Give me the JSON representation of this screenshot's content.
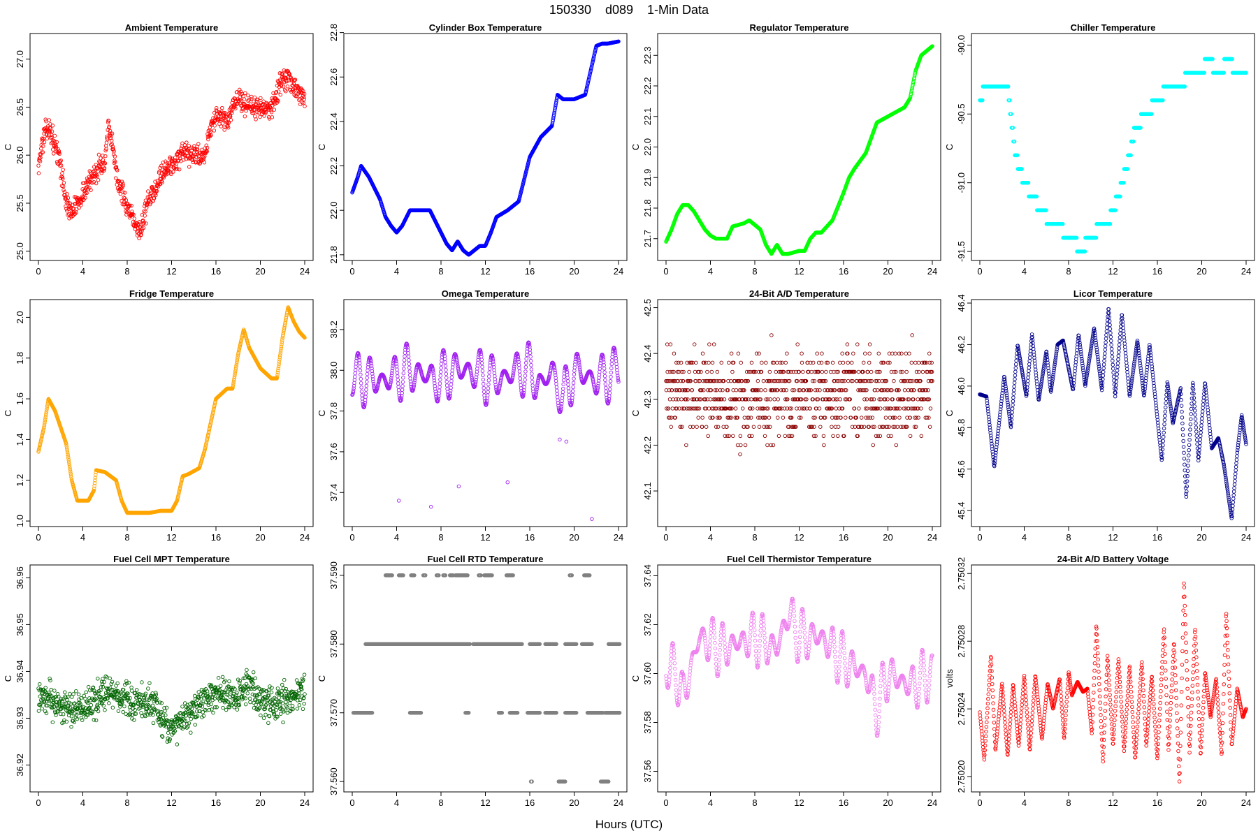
{
  "page_title": "150330    d089    1-Min Data",
  "x_label": "Hours (UTC)",
  "chart_data": [
    {
      "type": "scatter",
      "title": "Ambient Temperature",
      "ylabel": "C",
      "color": "#ff0000",
      "xlim": [
        0,
        24
      ],
      "ylim": [
        24.94,
        27.23
      ],
      "xticks": [
        0,
        4,
        8,
        12,
        16,
        20,
        24
      ],
      "yticks": [
        25.0,
        25.5,
        26.0,
        26.5,
        27.0
      ],
      "ytick_labels": [
        "25.0",
        "25.5",
        "26.0",
        "26.5",
        "27.0"
      ],
      "noise": 0.12,
      "round": 0,
      "x": [
        0,
        0.5,
        0.9,
        1.5,
        2,
        2.5,
        3,
        3.5,
        4.5,
        5,
        5.5,
        6,
        6.3,
        6.8,
        7.2,
        7.6,
        8.1,
        8.7,
        9.2,
        9.8,
        10.3,
        11,
        12,
        13,
        14,
        15,
        15.5,
        16,
        17,
        18,
        19,
        20,
        21,
        22,
        22.5,
        23,
        23.8
      ],
      "y": [
        25.9,
        26.2,
        26.3,
        26.1,
        25.9,
        25.5,
        25.4,
        25.5,
        25.7,
        25.8,
        25.9,
        25.9,
        26.3,
        26.0,
        25.7,
        25.6,
        25.4,
        25.3,
        25.2,
        25.5,
        25.6,
        25.8,
        25.9,
        26.0,
        26.0,
        26.0,
        26.3,
        26.4,
        26.35,
        26.6,
        26.5,
        26.5,
        26.5,
        26.8,
        26.8,
        26.7,
        26.6
      ]
    },
    {
      "type": "scatter",
      "title": "Cylinder Box Temperature",
      "ylabel": "C",
      "color": "#0000ff",
      "xlim": [
        0,
        24
      ],
      "ylim": [
        21.79,
        22.78
      ],
      "xticks": [
        0,
        4,
        8,
        12,
        16,
        20,
        24
      ],
      "yticks": [
        21.8,
        22.0,
        22.2,
        22.4,
        22.6,
        22.8
      ],
      "ytick_labels": [
        "21.8",
        "22.0",
        "22.2",
        "22.4",
        "22.6",
        "22.8"
      ],
      "noise": 0,
      "round": 0,
      "x": [
        0,
        0.5,
        0.8,
        1.5,
        2.5,
        3,
        3.5,
        4,
        4.5,
        5,
        5.2,
        6,
        7,
        7.5,
        8,
        8.5,
        9,
        9.5,
        10,
        10.5,
        11,
        11.5,
        12,
        12.5,
        13,
        14,
        15,
        15.5,
        16,
        17,
        18,
        18.5,
        19,
        20,
        21,
        22,
        22.5,
        23,
        24
      ],
      "y": [
        22.08,
        22.15,
        22.2,
        22.15,
        22.05,
        21.97,
        21.93,
        21.9,
        21.93,
        21.98,
        22.0,
        22.0,
        22.0,
        21.95,
        21.9,
        21.85,
        21.82,
        21.86,
        21.82,
        21.8,
        21.82,
        21.84,
        21.84,
        21.9,
        21.97,
        22.0,
        22.04,
        22.14,
        22.24,
        22.33,
        22.38,
        22.52,
        22.5,
        22.5,
        22.52,
        22.74,
        22.75,
        22.75,
        22.76
      ]
    },
    {
      "type": "scatter",
      "title": "Regulator Temperature",
      "ylabel": "C",
      "color": "#00ff00",
      "xlim": [
        0,
        24
      ],
      "ylim": [
        21.64,
        22.36
      ],
      "xticks": [
        0,
        4,
        8,
        12,
        16,
        20,
        24
      ],
      "yticks": [
        21.7,
        21.8,
        21.9,
        22.0,
        22.1,
        22.2,
        22.3
      ],
      "ytick_labels": [
        "21.7",
        "21.8",
        "21.9",
        "22.0",
        "22.1",
        "22.2",
        "22.3"
      ],
      "noise": 0,
      "round": 0,
      "x": [
        0,
        0.5,
        1,
        1.5,
        2,
        2.5,
        3,
        3.5,
        4,
        4.5,
        5.5,
        6,
        7,
        7.5,
        8.5,
        9,
        9.5,
        10,
        10.5,
        11,
        12,
        12.5,
        13,
        13.5,
        14,
        15,
        16,
        16.5,
        17,
        18,
        19,
        20,
        20.5,
        21,
        21.5,
        22,
        22.5,
        23,
        24
      ],
      "y": [
        21.69,
        21.73,
        21.78,
        21.81,
        21.81,
        21.79,
        21.76,
        21.73,
        21.71,
        21.7,
        21.7,
        21.74,
        21.75,
        21.76,
        21.73,
        21.68,
        21.65,
        21.68,
        21.65,
        21.65,
        21.66,
        21.66,
        21.7,
        21.72,
        21.72,
        21.76,
        21.85,
        21.9,
        21.93,
        21.98,
        22.08,
        22.1,
        22.11,
        22.12,
        22.13,
        22.16,
        22.25,
        22.3,
        22.33
      ]
    },
    {
      "type": "scatter",
      "title": "Chiller Temperature",
      "ylabel": "C",
      "color": "#00ffff",
      "xlim": [
        0,
        24
      ],
      "ylim": [
        -91.54,
        -89.94
      ],
      "xticks": [
        0,
        4,
        8,
        12,
        16,
        20,
        24
      ],
      "yticks": [
        -90.0,
        -90.5,
        -91.0,
        -91.5
      ],
      "ytick_labels": [
        "-90.0",
        "-90.5",
        "-91.0",
        "-91.5"
      ],
      "noise": 0,
      "round": 0.1,
      "x": [
        0,
        0.5,
        1.5,
        2.5,
        3.2,
        4,
        4.8,
        5.5,
        6.5,
        7.5,
        8.5,
        9,
        9.5,
        10.5,
        11.5,
        12.5,
        13.5,
        14,
        15,
        16,
        17,
        18,
        19,
        20,
        20.5,
        21.5,
        22.5,
        23,
        24
      ],
      "y": [
        -90.4,
        -90.3,
        -90.3,
        -90.3,
        -90.8,
        -91.0,
        -91.1,
        -91.2,
        -91.3,
        -91.35,
        -91.4,
        -91.5,
        -91.45,
        -91.35,
        -91.3,
        -91.1,
        -90.8,
        -90.6,
        -90.5,
        -90.4,
        -90.3,
        -90.3,
        -90.2,
        -90.2,
        -90.1,
        -90.2,
        -90.1,
        -90.2,
        -90.2
      ]
    },
    {
      "type": "scatter",
      "title": "Fridge Temperature",
      "ylabel": "C",
      "color": "#ffa500",
      "xlim": [
        0,
        24
      ],
      "ylim": [
        0.99,
        2.07
      ],
      "xticks": [
        0,
        4,
        8,
        12,
        16,
        20,
        24
      ],
      "yticks": [
        1.0,
        1.2,
        1.4,
        1.6,
        1.8,
        2.0
      ],
      "ytick_labels": [
        "1.0",
        "1.2",
        "1.4",
        "1.6",
        "1.8",
        "2.0"
      ],
      "noise": 0,
      "round": 0,
      "x": [
        0,
        0.5,
        0.9,
        1.5,
        2.5,
        3,
        3.5,
        4.5,
        5,
        5.2,
        6,
        7,
        7.5,
        8,
        8.5,
        9,
        10,
        11,
        12,
        12.5,
        13,
        13.5,
        14.5,
        15,
        16,
        17,
        17.5,
        18,
        18.5,
        19,
        20,
        21,
        21.5,
        22,
        22.5,
        23,
        23.5,
        24
      ],
      "y": [
        1.34,
        1.46,
        1.6,
        1.54,
        1.38,
        1.2,
        1.1,
        1.1,
        1.15,
        1.25,
        1.24,
        1.2,
        1.1,
        1.04,
        1.04,
        1.04,
        1.04,
        1.05,
        1.05,
        1.1,
        1.22,
        1.23,
        1.26,
        1.35,
        1.6,
        1.65,
        1.65,
        1.82,
        1.94,
        1.85,
        1.75,
        1.7,
        1.7,
        1.9,
        2.05,
        1.98,
        1.93,
        1.9
      ]
    },
    {
      "type": "scatter",
      "title": "Omega Temperature",
      "ylabel": "C",
      "color": "#a020f0",
      "xlim": [
        0,
        24
      ],
      "ylim": [
        37.25,
        38.33
      ],
      "xticks": [
        0,
        4,
        8,
        12,
        16,
        20,
        24
      ],
      "yticks": [
        37.4,
        37.6,
        37.8,
        38.0,
        38.2
      ],
      "ytick_labels": [
        "37.4",
        "37.6",
        "37.8",
        "38.0",
        "38.2"
      ],
      "noise": 0,
      "round": 0,
      "wave_amp": 0.14,
      "wave_period": 1.1,
      "x": [
        0,
        3,
        5,
        8,
        9,
        10.5,
        13,
        15,
        16,
        17,
        18,
        19,
        20,
        22,
        24
      ],
      "y": [
        37.96,
        37.95,
        38.0,
        37.95,
        38.0,
        38.0,
        37.95,
        38.0,
        38.0,
        37.92,
        38.0,
        37.85,
        38.0,
        37.95,
        38.0
      ],
      "outliers": [
        [
          4.2,
          37.36
        ],
        [
          7.1,
          37.33
        ],
        [
          9.6,
          37.43
        ],
        [
          14,
          37.45
        ],
        [
          21.6,
          37.27
        ],
        [
          18.7,
          37.66
        ],
        [
          19.3,
          37.65
        ]
      ]
    },
    {
      "type": "scatter",
      "title": "24-Bit A/D Temperature",
      "ylabel": "C",
      "color": "#8b0000",
      "xlim": [
        0,
        24
      ],
      "ylim": [
        42.03,
        42.51
      ],
      "xticks": [
        0,
        4,
        8,
        12,
        16,
        20,
        24
      ],
      "yticks": [
        42.1,
        42.2,
        42.3,
        42.4,
        42.5
      ],
      "ytick_labels": [
        "42.1",
        "42.2",
        "42.3",
        "42.4",
        "42.5"
      ],
      "noise": 0.1,
      "round": 0.02,
      "x": [
        0,
        6,
        12,
        17,
        19,
        24
      ],
      "y": [
        42.32,
        42.3,
        42.31,
        42.32,
        42.3,
        42.33
      ]
    },
    {
      "type": "scatter",
      "title": "Licor Temperature",
      "ylabel": "C",
      "color": "#00008b",
      "xlim": [
        0,
        24
      ],
      "ylim": [
        45.34,
        46.4
      ],
      "xticks": [
        0,
        4,
        8,
        12,
        16,
        20,
        24
      ],
      "yticks": [
        45.4,
        45.6,
        45.8,
        46.0,
        46.2,
        46.4
      ],
      "ytick_labels": [
        "45.4",
        "45.6",
        "45.8",
        "46.0",
        "46.2",
        "46.4"
      ],
      "noise": 0,
      "round": 0,
      "x": [
        0,
        0.6,
        1.3,
        2.2,
        2.8,
        3.4,
        4.2,
        4.7,
        5.3,
        6,
        6.4,
        7,
        7.5,
        8.4,
        8.9,
        9.5,
        10.3,
        11,
        11.6,
        12.2,
        12.8,
        13.5,
        14.2,
        14.8,
        15.3,
        15.8,
        16.4,
        16.9,
        17.4,
        18.1,
        18.6,
        19.2,
        19.7,
        20.3,
        20.9,
        21.5,
        22,
        22.7,
        23.2,
        23.6,
        24
      ],
      "y": [
        45.96,
        45.95,
        45.61,
        46.05,
        45.8,
        46.2,
        45.95,
        46.25,
        45.93,
        46.17,
        45.97,
        46.2,
        46.22,
        45.98,
        46.25,
        46.0,
        46.28,
        45.98,
        46.38,
        45.95,
        46.35,
        45.95,
        46.22,
        45.95,
        46.2,
        45.95,
        45.64,
        46.02,
        45.82,
        45.99,
        45.46,
        46.02,
        45.64,
        46.02,
        45.7,
        45.75,
        45.62,
        45.36,
        45.68,
        45.86,
        45.72
      ]
    },
    {
      "type": "scatter",
      "title": "Fuel Cell MPT Temperature",
      "ylabel": "C",
      "color": "#006400",
      "xlim": [
        0,
        24
      ],
      "ylim": [
        36.915,
        36.962
      ],
      "xticks": [
        0,
        4,
        8,
        12,
        16,
        20,
        24
      ],
      "yticks": [
        36.92,
        36.93,
        36.94,
        36.95,
        36.96
      ],
      "ytick_labels": [
        "36.92",
        "36.93",
        "36.94",
        "36.95",
        "36.96"
      ],
      "noise": 0.004,
      "round": 0,
      "x": [
        0,
        2,
        4,
        5.5,
        6,
        8,
        10,
        12,
        14,
        16,
        18,
        19,
        20,
        22,
        24
      ],
      "y": [
        36.935,
        36.933,
        36.932,
        36.935,
        36.935,
        36.934,
        36.933,
        36.928,
        36.932,
        36.935,
        36.935,
        36.938,
        36.933,
        36.933,
        36.936
      ]
    },
    {
      "type": "scatter",
      "title": "Fuel Cell RTD Temperature",
      "ylabel": "C",
      "color": "#808080",
      "xlim": [
        0,
        24
      ],
      "ylim": [
        37.559,
        37.591
      ],
      "xticks": [
        0,
        4,
        8,
        12,
        16,
        20,
        24
      ],
      "yticks": [
        37.56,
        37.57,
        37.58,
        37.59
      ],
      "ytick_labels": [
        "37.560",
        "37.570",
        "37.580",
        "37.590"
      ],
      "noise": 0,
      "round": 0,
      "x": [
        0,
        24
      ],
      "y": [
        37.58,
        37.58
      ],
      "band_levels": [
        37.57,
        37.58,
        37.59,
        37.56
      ],
      "band_ranges": [
        [
          [
            0.1,
            1.8
          ],
          [
            5.2,
            6.2
          ],
          [
            10.2,
            10.5
          ],
          [
            13.2,
            13.5
          ],
          [
            14.2,
            14.9
          ],
          [
            15.8,
            16.9
          ],
          [
            17.4,
            18.4
          ],
          [
            19.2,
            20.2
          ],
          [
            21.2,
            22.6
          ],
          [
            22.8,
            24.1
          ]
        ],
        [
          [
            1.2,
            10.6
          ],
          [
            10.9,
            15.3
          ],
          [
            16.0,
            16.9
          ],
          [
            17.4,
            18.4
          ],
          [
            19.2,
            20.2
          ],
          [
            20.7,
            21.6
          ],
          [
            23.1,
            24.1
          ]
        ],
        [
          [
            3.0,
            3.6
          ],
          [
            4.2,
            4.6
          ],
          [
            5.3,
            5.6
          ],
          [
            6.4,
            6.6
          ],
          [
            7.6,
            7.8
          ],
          [
            8.2,
            8.4
          ],
          [
            8.8,
            9.1
          ],
          [
            9.3,
            10.4
          ],
          [
            11.4,
            11.6
          ],
          [
            11.9,
            12.6
          ],
          [
            13.9,
            14.5
          ],
          [
            19.6,
            19.8
          ],
          [
            20.9,
            21.4
          ]
        ],
        [
          [
            16.1,
            16.2
          ],
          [
            18.6,
            19.2
          ],
          [
            22.4,
            23.1
          ]
        ]
      ]
    },
    {
      "type": "scatter",
      "title": "Fuel Cell Thermistor Temperature",
      "ylabel": "C",
      "color": "#ee82ee",
      "xlim": [
        0,
        24
      ],
      "ylim": [
        37.553,
        37.643
      ],
      "xticks": [
        0,
        4,
        8,
        12,
        16,
        20,
        24
      ],
      "yticks": [
        37.56,
        37.58,
        37.6,
        37.62,
        37.64
      ],
      "ytick_labels": [
        "37.56",
        "37.58",
        "37.60",
        "37.62",
        "37.64"
      ],
      "noise": 0,
      "round": 0,
      "wave_amp": 0.012,
      "wave_period": 0.9,
      "x": [
        0,
        1,
        1.5,
        3,
        5,
        8,
        10,
        11,
        12,
        14,
        16,
        18,
        19,
        20,
        22,
        24
      ],
      "y": [
        37.603,
        37.6,
        37.59,
        37.615,
        37.61,
        37.615,
        37.61,
        37.625,
        37.615,
        37.615,
        37.605,
        37.6,
        37.585,
        37.6,
        37.595,
        37.6
      ]
    },
    {
      "type": "scatter",
      "title": "24-Bit A/D Battery Voltage",
      "ylabel": "volts",
      "color": "#ff0000",
      "xlim": [
        0,
        24
      ],
      "ylim": [
        2.750193,
        2.750323
      ],
      "xticks": [
        0,
        4,
        8,
        12,
        16,
        20,
        24
      ],
      "yticks": [
        2.7502,
        2.75024,
        2.75028,
        2.75032
      ],
      "ytick_labels": [
        "2.75020",
        "2.75024",
        "2.75028",
        "2.75032"
      ],
      "noise": 0,
      "round": 0,
      "x": [
        0,
        0.4,
        1,
        1.4,
        2,
        2.5,
        3,
        3.5,
        4,
        4.5,
        5,
        5.6,
        6.1,
        6.6,
        7.2,
        7.6,
        8,
        8.3,
        8.8,
        9.3,
        9.7,
        10.1,
        10.5,
        11.1,
        11.5,
        12,
        12.5,
        13,
        13.5,
        14,
        14.6,
        15,
        15.5,
        16,
        16.6,
        17,
        17.5,
        18,
        18.4,
        18.9,
        19.4,
        19.9,
        20.3,
        20.8,
        21.3,
        21.8,
        22.2,
        22.7,
        23.2,
        23.7,
        24
      ],
      "y": [
        2.750238,
        2.75021,
        2.750272,
        2.750215,
        2.750255,
        2.750212,
        2.750255,
        2.750218,
        2.75026,
        2.750215,
        2.75026,
        2.750222,
        2.750255,
        2.75024,
        2.750258,
        2.750222,
        2.750262,
        2.750248,
        2.750256,
        2.75025,
        2.750252,
        2.750225,
        2.75029,
        2.750208,
        2.750272,
        2.750218,
        2.75027,
        2.750215,
        2.750266,
        2.75021,
        2.750268,
        2.750218,
        2.75026,
        2.75021,
        2.750288,
        2.750215,
        2.75028,
        2.750196,
        2.750316,
        2.750214,
        2.750288,
        2.750212,
        2.750262,
        2.750235,
        2.750258,
        2.750212,
        2.750298,
        2.750218,
        2.750252,
        2.750235,
        2.75024
      ]
    }
  ]
}
